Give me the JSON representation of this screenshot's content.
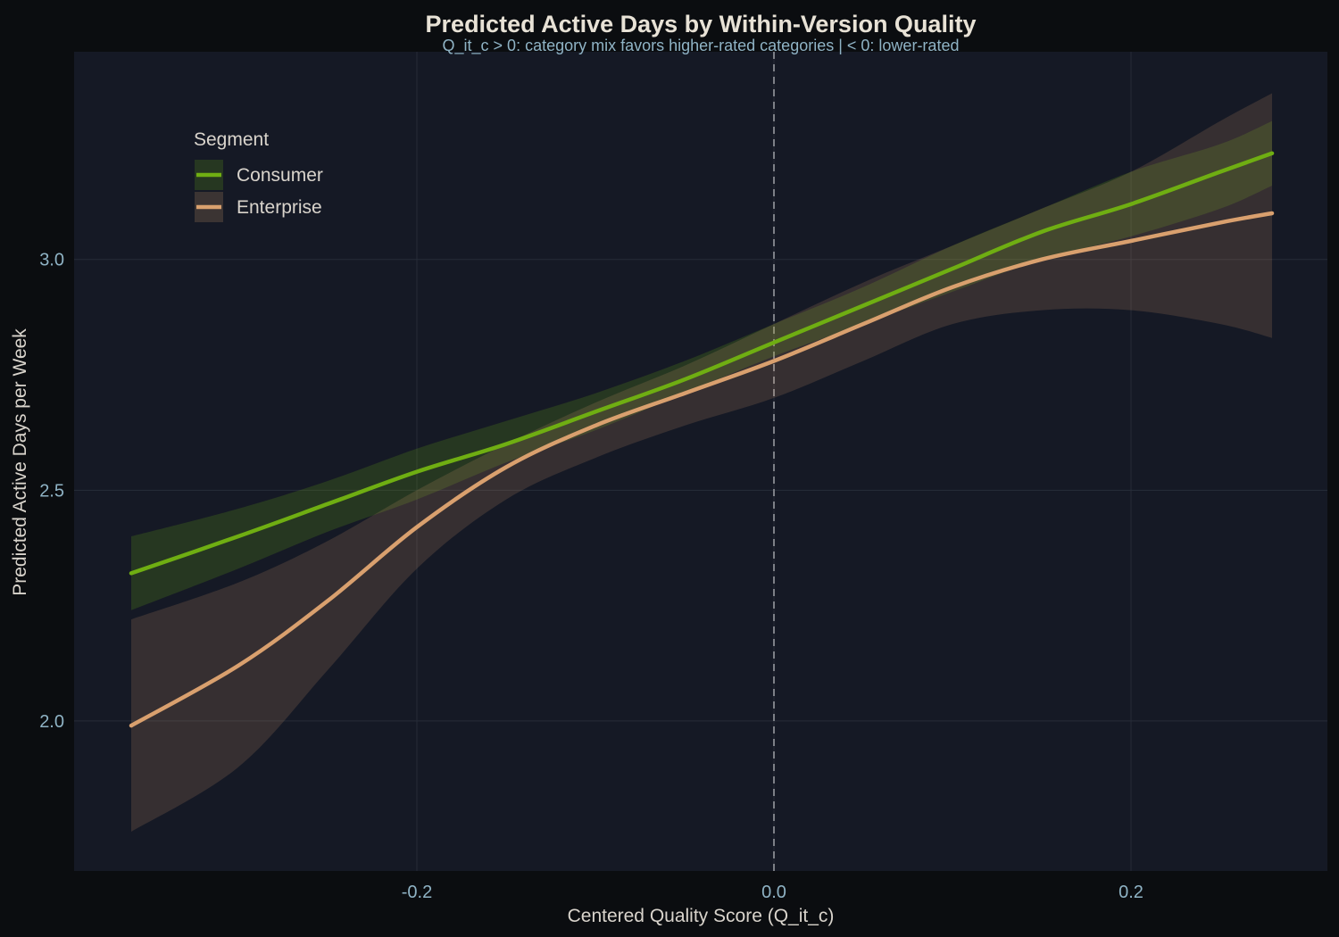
{
  "colors": {
    "page_bg": "#0b0d10",
    "plot_bg": "#151925",
    "grid": "#272c38",
    "title": "#e8e2d6",
    "subtitle": "#8fb3c5",
    "tick": "#8fb3c5",
    "axis_label": "#d9d4cc",
    "zero_line": "#7d8087",
    "consumer": "#6fae12",
    "enterprise": "#d9a06e"
  },
  "chart_data": {
    "type": "line",
    "title": "Predicted Active Days by Within-Version Quality",
    "subtitle": "Q_it_c > 0: category mix favors higher-rated categories | < 0: lower-rated",
    "xlabel": "Centered Quality Score (Q_it_c)",
    "ylabel": "Predicted Active Days per Week",
    "xlim": [
      -0.392,
      0.31
    ],
    "ylim": [
      1.675,
      3.45
    ],
    "x_ticks": [
      {
        "value": -0.2,
        "label": "-0.2"
      },
      {
        "value": 0.0,
        "label": "0.0"
      },
      {
        "value": 0.2,
        "label": "0.2"
      }
    ],
    "y_ticks": [
      {
        "value": 2.0,
        "label": "2.0"
      },
      {
        "value": 2.5,
        "label": "2.5"
      },
      {
        "value": 3.0,
        "label": "3.0"
      }
    ],
    "grid": true,
    "reference_line": {
      "x": 0.0,
      "style": "dashed"
    },
    "legend": {
      "title": "Segment",
      "position": "top-left"
    },
    "series": [
      {
        "name": "Consumer",
        "x": [
          -0.36,
          -0.3,
          -0.25,
          -0.2,
          -0.15,
          -0.1,
          -0.05,
          0.0,
          0.05,
          0.1,
          0.15,
          0.2,
          0.25,
          0.279
        ],
        "y": [
          2.32,
          2.4,
          2.47,
          2.54,
          2.6,
          2.67,
          2.74,
          2.82,
          2.9,
          2.98,
          3.06,
          3.12,
          3.19,
          3.23
        ],
        "lower": [
          2.24,
          2.33,
          2.41,
          2.48,
          2.56,
          2.63,
          2.71,
          2.79,
          2.86,
          2.93,
          3.0,
          3.05,
          3.11,
          3.16
        ],
        "upper": [
          2.4,
          2.46,
          2.52,
          2.59,
          2.65,
          2.71,
          2.78,
          2.86,
          2.94,
          3.03,
          3.11,
          3.19,
          3.25,
          3.3
        ]
      },
      {
        "name": "Enterprise",
        "x": [
          -0.36,
          -0.3,
          -0.25,
          -0.2,
          -0.15,
          -0.1,
          -0.05,
          0.0,
          0.05,
          0.1,
          0.15,
          0.2,
          0.25,
          0.279
        ],
        "y": [
          1.99,
          2.12,
          2.26,
          2.42,
          2.55,
          2.64,
          2.71,
          2.78,
          2.86,
          2.94,
          3.0,
          3.04,
          3.08,
          3.1
        ],
        "lower": [
          1.76,
          1.9,
          2.11,
          2.33,
          2.48,
          2.57,
          2.64,
          2.7,
          2.78,
          2.86,
          2.89,
          2.89,
          2.86,
          2.83
        ],
        "upper": [
          2.22,
          2.3,
          2.39,
          2.5,
          2.6,
          2.69,
          2.77,
          2.86,
          2.95,
          3.03,
          3.11,
          3.19,
          3.3,
          3.36
        ]
      }
    ]
  }
}
